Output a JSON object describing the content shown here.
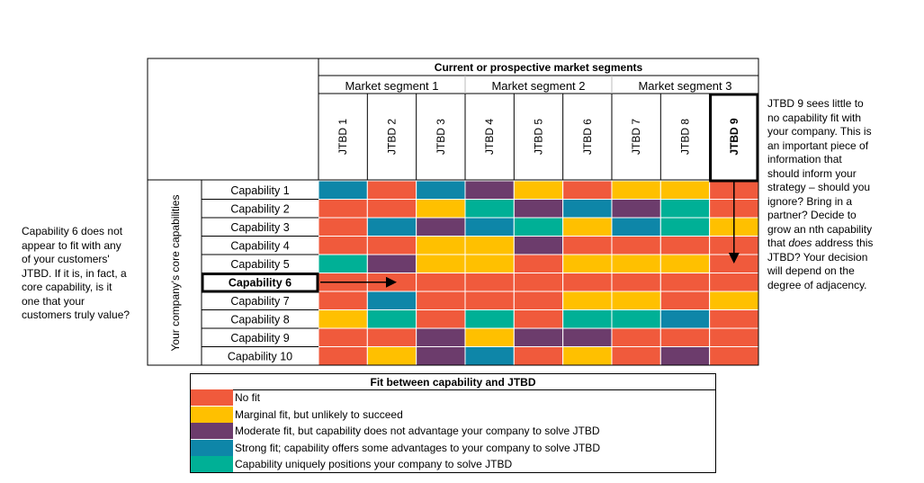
{
  "header": {
    "title": "Current or prospective market segments",
    "segments": [
      "Market segment 1",
      "Market segment 2",
      "Market segment 3"
    ],
    "jtbd": [
      "JTBD 1",
      "JTBD 2",
      "JTBD 3",
      "JTBD 4",
      "JTBD 5",
      "JTBD 6",
      "JTBD 7",
      "JTBD 8",
      "JTBD 9"
    ]
  },
  "side_label": "Your company's core capabilities",
  "capabilities": [
    "Capability 1",
    "Capability 2",
    "Capability 3",
    "Capability 4",
    "Capability 5",
    "Capability 6",
    "Capability 7",
    "Capability 8",
    "Capability 9",
    "Capability 10"
  ],
  "highlight": {
    "row": "Capability 6",
    "column": "JTBD 9"
  },
  "colors": {
    "none": "#f05a3c",
    "marginal": "#ffc000",
    "moderate": "#6c3c6c",
    "strong": "#0e86a8",
    "unique": "#00b096"
  },
  "matrix": [
    [
      "strong",
      "none",
      "strong",
      "moderate",
      "marginal",
      "none",
      "marginal",
      "marginal",
      "none"
    ],
    [
      "none",
      "none",
      "marginal",
      "unique",
      "moderate",
      "strong",
      "moderate",
      "unique",
      "none"
    ],
    [
      "none",
      "strong",
      "moderate",
      "strong",
      "unique",
      "marginal",
      "strong",
      "unique",
      "marginal"
    ],
    [
      "none",
      "none",
      "marginal",
      "marginal",
      "moderate",
      "none",
      "none",
      "none",
      "none"
    ],
    [
      "unique",
      "moderate",
      "marginal",
      "marginal",
      "none",
      "marginal",
      "marginal",
      "marginal",
      "none"
    ],
    [
      "none",
      "none",
      "none",
      "none",
      "none",
      "none",
      "none",
      "none",
      "none"
    ],
    [
      "none",
      "strong",
      "none",
      "none",
      "none",
      "marginal",
      "marginal",
      "none",
      "marginal"
    ],
    [
      "marginal",
      "unique",
      "none",
      "unique",
      "none",
      "unique",
      "unique",
      "strong",
      "none"
    ],
    [
      "none",
      "none",
      "moderate",
      "marginal",
      "moderate",
      "moderate",
      "none",
      "none",
      "none"
    ],
    [
      "none",
      "marginal",
      "moderate",
      "strong",
      "none",
      "marginal",
      "none",
      "moderate",
      "none"
    ]
  ],
  "legend": {
    "title": "Fit between capability and JTBD",
    "items": [
      {
        "key": "none",
        "label": "No fit"
      },
      {
        "key": "marginal",
        "label": "Marginal fit, but unlikely to succeed"
      },
      {
        "key": "moderate",
        "label": "Moderate fit, but capability does not advantage your company to solve JTBD"
      },
      {
        "key": "strong",
        "label": "Strong fit; capability offers some advantages to your company to solve JTBD"
      },
      {
        "key": "unique",
        "label": "Capability uniquely positions your company to solve JTBD"
      }
    ]
  },
  "notes": {
    "left": {
      "lines": [
        "Capability 6 does not",
        "appear to fit with any",
        "of your customers'",
        "JTBD. If it is, in fact, a",
        "core capability, is it",
        "one that your",
        "customers truly value?"
      ]
    },
    "right": {
      "lines_before": [
        "JTBD 9 sees little to",
        "no capability fit with",
        "your company. This is",
        "an important piece of",
        "information that",
        "should inform your",
        "strategy – should you",
        "ignore? Bring in a",
        "partner? Decide to",
        "grow an nth capability"
      ],
      "emph_prefix": "that ",
      "emph_word": "does",
      "emph_suffix": " address this",
      "lines_after": [
        "JTBD? Your decision",
        "will depend on the",
        "degree of adjacency."
      ]
    }
  }
}
